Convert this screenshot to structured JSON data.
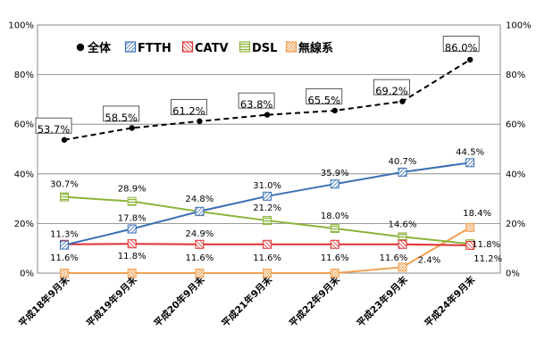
{
  "chart_data": {
    "type": "line",
    "categories": [
      "平成18年9月末",
      "平成19年9月末",
      "平成20年9月末",
      "平成21年9月末",
      "平成22年9月末",
      "平成23年9月末",
      "平成24年9月末"
    ],
    "ylim": [
      0,
      100
    ],
    "yticks": [
      "0%",
      "20%",
      "40%",
      "60%",
      "80%",
      "100%"
    ],
    "legend_position": "top-left",
    "series": [
      {
        "name": "全体",
        "color": "#000000",
        "marker": "dot",
        "dashed": true,
        "values": [
          53.7,
          58.5,
          61.2,
          63.8,
          65.5,
          69.2,
          86.0
        ],
        "labels": [
          "53.7%",
          "58.5%",
          "61.2%",
          "63.8%",
          "65.5%",
          "69.2%",
          "86.0%"
        ]
      },
      {
        "name": "FTTH",
        "color": "#3a6fb5",
        "marker": "square-hatch",
        "values": [
          11.3,
          17.8,
          24.9,
          31.0,
          35.9,
          40.7,
          44.5
        ],
        "labels": [
          "11.3%",
          "17.8%",
          "24.9%",
          "31.0%",
          "35.9%",
          "40.7%",
          "44.5%"
        ]
      },
      {
        "name": "CATV",
        "color": "#e03030",
        "marker": "square-hatch",
        "values": [
          11.6,
          11.8,
          11.6,
          11.6,
          11.6,
          11.6,
          11.2
        ],
        "labels": [
          "11.6%",
          "11.8%",
          "11.6%",
          "11.6%",
          "11.6%",
          "11.6%",
          "11.2%"
        ]
      },
      {
        "name": "DSL",
        "color": "#8cb33a",
        "marker": "square-lines",
        "values": [
          30.7,
          28.9,
          24.8,
          21.2,
          18.0,
          14.6,
          11.8
        ],
        "labels": [
          "30.7%",
          "28.9%",
          "24.8%",
          "21.2%",
          "18.0%",
          "14.6%",
          "11.8%"
        ]
      },
      {
        "name": "無線系",
        "color": "#f0a050",
        "marker": "square-check",
        "values": [
          0,
          0,
          0,
          0,
          0,
          2.4,
          18.4
        ],
        "labels": [
          "",
          "",
          "",
          "",
          "",
          "2.4%",
          "18.4%"
        ]
      }
    ]
  }
}
